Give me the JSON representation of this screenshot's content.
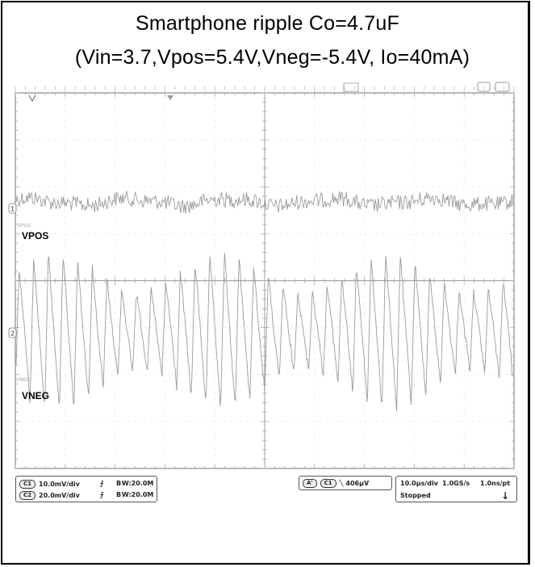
{
  "title_line1": "Smartphone ripple Co=4.7uF",
  "title_line2": "(Vin=3.7,Vpos=5.4V,Vneg=-5.4V, Io=40mA)",
  "chart_data": {
    "type": "line",
    "instrument": "oscilloscope",
    "grid": true,
    "series": [
      {
        "name": "VPOS",
        "channel_marker": "1",
        "offset_label": "VPOS",
        "scale": "10.0mV/div",
        "bandwidth": "20.0M",
        "color": "#9a9a9a",
        "waveform": "noise",
        "ripple_divisions": 0.6
      },
      {
        "name": "VNEG",
        "channel_marker": "2",
        "offset_label": "VNEG",
        "scale": "20.0mV/div",
        "bandwidth": "20.0M",
        "color": "#9a9a9a",
        "waveform": "sawtooth",
        "cycles_on_screen": 34,
        "ripple_divisions": 3.4
      }
    ],
    "divisions_x": 10,
    "divisions_y": 8
  },
  "status_bar": {
    "ch1_badge": "C1",
    "ch1_scale": "10.0mV/div",
    "ch1_bw": "B W:20.0M",
    "ch2_badge": "C2",
    "ch2_scale": "20.0mV/div",
    "ch2_bw": "B W:20.0M",
    "trigger_badge": "A'",
    "trigger_source": "C1",
    "trigger_level": "406µV",
    "timebase": "10.0µs/div",
    "sample_rate": "1.0GS/s",
    "resolution": "1.0ns/pt",
    "run_state": "Stopped"
  },
  "colors": {
    "grid": "#9a9a9a",
    "trace": "#9a9a9a",
    "border": "#555555"
  }
}
